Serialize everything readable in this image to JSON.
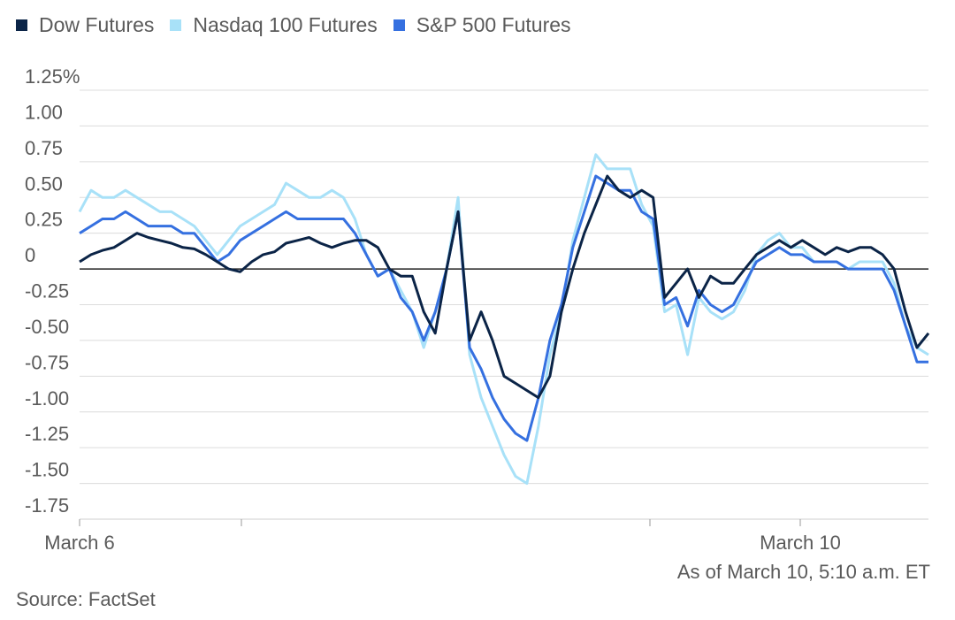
{
  "legend": [
    {
      "name": "Dow Futures",
      "color": "#0b2447"
    },
    {
      "name": "Nasdaq 100 Futures",
      "color": "#a8e1f8"
    },
    {
      "name": "S&P 500 Futures",
      "color": "#3570e0"
    }
  ],
  "footer": {
    "as_of": "As of March 10, 5:10 a.m. ET",
    "source": "Source: FactSet"
  },
  "chart_data": {
    "type": "line",
    "ylim": [
      -1.75,
      1.25
    ],
    "yticks": [
      1.25,
      1.0,
      0.75,
      0.5,
      0.25,
      0,
      -0.25,
      -0.5,
      -0.75,
      -1.0,
      -1.25,
      -1.5,
      -1.75
    ],
    "ytick_labels": [
      "1.25%",
      "1.00",
      "0.75",
      "0.50",
      "0.25",
      "0",
      "-0.25",
      "-0.50",
      "-0.75",
      "-1.00",
      "-1.25",
      "-1.50",
      "-1.75"
    ],
    "x_labels": [
      "March 6",
      "March 10"
    ],
    "grid": true,
    "legend_position": "top-left",
    "series": [
      {
        "name": "Dow Futures",
        "color": "#0b2447",
        "values": [
          0.05,
          0.1,
          0.13,
          0.15,
          0.2,
          0.25,
          0.22,
          0.2,
          0.18,
          0.15,
          0.14,
          0.1,
          0.05,
          0.0,
          -0.02,
          0.05,
          0.1,
          0.12,
          0.18,
          0.2,
          0.22,
          0.18,
          0.15,
          0.18,
          0.2,
          0.2,
          0.15,
          0.0,
          -0.05,
          -0.05,
          -0.3,
          -0.45,
          0.0,
          0.4,
          -0.5,
          -0.3,
          -0.5,
          -0.75,
          -0.8,
          -0.85,
          -0.9,
          -0.75,
          -0.3,
          0.0,
          0.25,
          0.45,
          0.65,
          0.55,
          0.5,
          0.55,
          0.5,
          -0.2,
          -0.1,
          0.0,
          -0.2,
          -0.05,
          -0.1,
          -0.1,
          0.0,
          0.1,
          0.15,
          0.2,
          0.15,
          0.2,
          0.15,
          0.1,
          0.15,
          0.12,
          0.15,
          0.15,
          0.1,
          0.0,
          -0.3,
          -0.55,
          -0.45
        ]
      },
      {
        "name": "Nasdaq 100 Futures",
        "color": "#a8e1f8",
        "values": [
          0.4,
          0.55,
          0.5,
          0.5,
          0.55,
          0.5,
          0.45,
          0.4,
          0.4,
          0.35,
          0.3,
          0.2,
          0.1,
          0.2,
          0.3,
          0.35,
          0.4,
          0.45,
          0.6,
          0.55,
          0.5,
          0.5,
          0.55,
          0.5,
          0.35,
          0.1,
          -0.05,
          0.0,
          -0.15,
          -0.3,
          -0.55,
          -0.3,
          0.0,
          0.5,
          -0.6,
          -0.9,
          -1.1,
          -1.3,
          -1.45,
          -1.5,
          -1.1,
          -0.6,
          -0.3,
          0.2,
          0.5,
          0.8,
          0.7,
          0.7,
          0.7,
          0.45,
          0.3,
          -0.3,
          -0.25,
          -0.6,
          -0.2,
          -0.3,
          -0.35,
          -0.3,
          -0.15,
          0.1,
          0.2,
          0.25,
          0.15,
          0.15,
          0.05,
          0.05,
          0.05,
          0.0,
          0.05,
          0.05,
          0.05,
          -0.1,
          -0.4,
          -0.55,
          -0.6
        ]
      },
      {
        "name": "S&P 500 Futures",
        "color": "#3570e0",
        "values": [
          0.25,
          0.3,
          0.35,
          0.35,
          0.4,
          0.35,
          0.3,
          0.3,
          0.3,
          0.25,
          0.25,
          0.15,
          0.05,
          0.1,
          0.2,
          0.25,
          0.3,
          0.35,
          0.4,
          0.35,
          0.35,
          0.35,
          0.35,
          0.35,
          0.25,
          0.1,
          -0.05,
          0.0,
          -0.2,
          -0.3,
          -0.5,
          -0.3,
          0.0,
          0.4,
          -0.55,
          -0.7,
          -0.9,
          -1.05,
          -1.15,
          -1.2,
          -0.9,
          -0.5,
          -0.25,
          0.15,
          0.4,
          0.65,
          0.6,
          0.55,
          0.55,
          0.4,
          0.35,
          -0.25,
          -0.2,
          -0.4,
          -0.15,
          -0.25,
          -0.3,
          -0.25,
          -0.1,
          0.05,
          0.1,
          0.15,
          0.1,
          0.1,
          0.05,
          0.05,
          0.05,
          0.0,
          0.0,
          0.0,
          0.0,
          -0.15,
          -0.4,
          -0.65,
          -0.65
        ]
      }
    ]
  }
}
